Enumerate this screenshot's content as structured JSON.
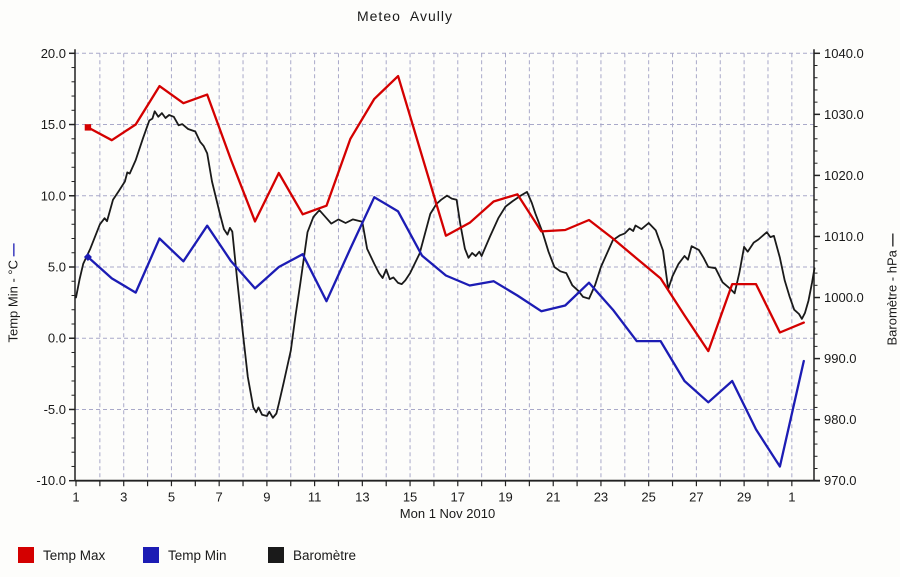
{
  "title": "Meteo  Avully",
  "chart_data": {
    "type": "line",
    "title": "Meteo  Avully",
    "x_axis_label": "Mon 1 Nov 2010",
    "x_range_days": [
      1,
      32
    ],
    "x_tick_labels": [
      "1",
      "3",
      "5",
      "7",
      "9",
      "11",
      "13",
      "15",
      "17",
      "19",
      "21",
      "23",
      "25",
      "27",
      "29",
      "1"
    ],
    "grid": "daily vertical + 5-unit horizontal, dashed",
    "grid_color": "#a9a9c9",
    "legend_position": "bottom-left",
    "y_left": {
      "title": "Temp Min - °C",
      "line_symbol": "—",
      "symbol_color": "#1c1cb4",
      "min": -10.0,
      "max": 20.0,
      "major_step": 5.0,
      "minor_step": 1.0,
      "tick_labels": [
        "20.0",
        "15.0",
        "10.0",
        "5.0",
        "0.0",
        "-5.0",
        "-10.0"
      ]
    },
    "y_right": {
      "title": "Baromètre - hPa",
      "line_symbol": "—",
      "symbol_color": "#1a1a1a",
      "min": 970.0,
      "max": 1040.0,
      "major_step": 10.0,
      "minor_step": 2.0,
      "tick_labels": [
        "1040.0",
        "1030.0",
        "1020.0",
        "1010.0",
        "1000.0",
        "990.0",
        "980.0",
        "970.0"
      ]
    },
    "series": [
      {
        "name": "Temp Max",
        "axis": "left",
        "unit": "°C",
        "color": "#d40000",
        "marker_first_point": "square",
        "days": [
          1,
          2,
          3,
          4,
          5,
          6,
          7,
          8,
          9,
          10,
          11,
          12,
          13,
          14,
          15,
          16,
          17,
          18,
          19,
          20,
          21,
          22,
          23,
          24,
          25,
          26,
          27,
          28,
          29,
          30,
          31
        ],
        "values": [
          14.8,
          13.9,
          15.0,
          17.7,
          16.5,
          17.1,
          12.5,
          8.2,
          11.6,
          8.7,
          9.3,
          14.0,
          16.8,
          18.4,
          12.8,
          7.2,
          8.1,
          9.6,
          10.1,
          7.5,
          7.6,
          8.3,
          7.0,
          5.6,
          4.2,
          1.6,
          -0.9,
          3.8,
          3.8,
          0.4,
          1.1
        ]
      },
      {
        "name": "Temp Min",
        "axis": "left",
        "unit": "°C",
        "color": "#1c1cb4",
        "marker_first_point": "diamond",
        "days": [
          1,
          2,
          3,
          4,
          5,
          6,
          7,
          8,
          9,
          10,
          11,
          12,
          13,
          14,
          15,
          16,
          17,
          18,
          19,
          20,
          21,
          22,
          23,
          24,
          25,
          26,
          27,
          28,
          29,
          30,
          31
        ],
        "values": [
          5.7,
          4.2,
          3.2,
          7.0,
          5.4,
          7.9,
          5.4,
          3.5,
          5.0,
          5.9,
          2.6,
          6.3,
          9.9,
          8.9,
          5.8,
          4.4,
          3.7,
          4.0,
          3.0,
          1.9,
          2.3,
          3.9,
          2.0,
          -0.2,
          -0.2,
          -3.0,
          -4.5,
          -3.0,
          -6.4,
          -9.0,
          -1.6
        ]
      },
      {
        "name": "Baromètre",
        "axis": "right",
        "unit": "hPa",
        "color": "#1a1a1a",
        "points": [
          [
            1.0,
            1000
          ],
          [
            1.15,
            1003
          ],
          [
            1.3,
            1005.5
          ],
          [
            1.6,
            1008
          ],
          [
            2.0,
            1012
          ],
          [
            2.2,
            1013
          ],
          [
            2.3,
            1012.5
          ],
          [
            2.55,
            1016
          ],
          [
            2.8,
            1017.5
          ],
          [
            3.05,
            1019
          ],
          [
            3.15,
            1020.5
          ],
          [
            3.25,
            1020.3
          ],
          [
            3.5,
            1022.5
          ],
          [
            3.8,
            1026
          ],
          [
            4.07,
            1029
          ],
          [
            4.2,
            1029.3
          ],
          [
            4.3,
            1030.5
          ],
          [
            4.45,
            1029.6
          ],
          [
            4.6,
            1030.2
          ],
          [
            4.75,
            1029.4
          ],
          [
            4.9,
            1029.9
          ],
          [
            5.1,
            1029.6
          ],
          [
            5.3,
            1028.2
          ],
          [
            5.45,
            1028.4
          ],
          [
            5.7,
            1027.6
          ],
          [
            6.0,
            1027.2
          ],
          [
            6.2,
            1025.5
          ],
          [
            6.35,
            1024.8
          ],
          [
            6.5,
            1023.6
          ],
          [
            6.7,
            1019
          ],
          [
            7.03,
            1013.7
          ],
          [
            7.2,
            1011.2
          ],
          [
            7.35,
            1010.3
          ],
          [
            7.45,
            1011.4
          ],
          [
            7.55,
            1010.8
          ],
          [
            7.75,
            1003
          ],
          [
            8.0,
            994
          ],
          [
            8.2,
            987
          ],
          [
            8.43,
            982
          ],
          [
            8.55,
            981.2
          ],
          [
            8.65,
            982
          ],
          [
            8.8,
            980.8
          ],
          [
            9.0,
            980.6
          ],
          [
            9.1,
            981.3
          ],
          [
            9.25,
            980.3
          ],
          [
            9.4,
            981
          ],
          [
            9.5,
            982.6
          ],
          [
            9.7,
            986
          ],
          [
            10.0,
            991.3
          ],
          [
            10.2,
            997
          ],
          [
            10.4,
            1002.3
          ],
          [
            10.7,
            1010.7
          ],
          [
            10.95,
            1013.2
          ],
          [
            11.2,
            1014.3
          ],
          [
            11.5,
            1013
          ],
          [
            11.7,
            1012.1
          ],
          [
            12.0,
            1012.8
          ],
          [
            12.3,
            1012.2
          ],
          [
            12.6,
            1012.8
          ],
          [
            13.0,
            1012.4
          ],
          [
            13.2,
            1008
          ],
          [
            13.5,
            1005.5
          ],
          [
            13.7,
            1004
          ],
          [
            13.85,
            1003.2
          ],
          [
            14.0,
            1004.6
          ],
          [
            14.15,
            1003
          ],
          [
            14.3,
            1003.3
          ],
          [
            14.5,
            1002.4
          ],
          [
            14.65,
            1002.2
          ],
          [
            14.8,
            1002.8
          ],
          [
            15.0,
            1004
          ],
          [
            15.4,
            1007.2
          ],
          [
            15.85,
            1013.7
          ],
          [
            16.1,
            1015.3
          ],
          [
            16.3,
            1016
          ],
          [
            16.55,
            1016.7
          ],
          [
            16.75,
            1016.2
          ],
          [
            16.95,
            1016
          ],
          [
            17.1,
            1012.1
          ],
          [
            17.3,
            1008
          ],
          [
            17.45,
            1006.5
          ],
          [
            17.6,
            1007.3
          ],
          [
            17.75,
            1006.8
          ],
          [
            17.9,
            1007.5
          ],
          [
            18.0,
            1006.8
          ],
          [
            18.35,
            1010
          ],
          [
            18.7,
            1013
          ],
          [
            19.0,
            1014.9
          ],
          [
            19.3,
            1015.8
          ],
          [
            19.6,
            1016.6
          ],
          [
            19.9,
            1017.3
          ],
          [
            20.1,
            1015.5
          ],
          [
            20.25,
            1013.8
          ],
          [
            20.55,
            1010.7
          ],
          [
            20.8,
            1007.5
          ],
          [
            21.05,
            1005
          ],
          [
            21.3,
            1004.3
          ],
          [
            21.55,
            1004
          ],
          [
            21.8,
            1002
          ],
          [
            22.05,
            1001.1
          ],
          [
            22.25,
            1000.1
          ],
          [
            22.5,
            999.8
          ],
          [
            22.75,
            1002
          ],
          [
            23.0,
            1005
          ],
          [
            23.5,
            1009.4
          ],
          [
            23.8,
            1010.2
          ],
          [
            24.0,
            1010.5
          ],
          [
            24.2,
            1011.3
          ],
          [
            24.35,
            1010.9
          ],
          [
            24.45,
            1011.8
          ],
          [
            24.7,
            1011.2
          ],
          [
            25.0,
            1012.2
          ],
          [
            25.3,
            1011
          ],
          [
            25.6,
            1007.7
          ],
          [
            25.82,
            1001.4
          ],
          [
            26.0,
            1003.5
          ],
          [
            26.25,
            1005.5
          ],
          [
            26.5,
            1006.8
          ],
          [
            26.65,
            1006.2
          ],
          [
            26.8,
            1008.4
          ],
          [
            27.1,
            1007.8
          ],
          [
            27.3,
            1006.5
          ],
          [
            27.5,
            1005
          ],
          [
            27.8,
            1004.8
          ],
          [
            28.1,
            1002.5
          ],
          [
            28.4,
            1001.5
          ],
          [
            28.6,
            1000.7
          ],
          [
            28.8,
            1004
          ],
          [
            29.0,
            1008.3
          ],
          [
            29.15,
            1007.5
          ],
          [
            29.4,
            1009
          ],
          [
            29.6,
            1009.5
          ],
          [
            29.8,
            1010.2
          ],
          [
            29.95,
            1010.7
          ],
          [
            30.1,
            1009.9
          ],
          [
            30.25,
            1010.1
          ],
          [
            30.5,
            1006.5
          ],
          [
            30.7,
            1002.8
          ],
          [
            30.9,
            1000.2
          ],
          [
            31.1,
            998
          ],
          [
            31.3,
            997.3
          ],
          [
            31.42,
            996.5
          ],
          [
            31.55,
            997.5
          ],
          [
            31.7,
            999.5
          ],
          [
            31.85,
            1002.5
          ],
          [
            31.95,
            1004.8
          ]
        ]
      }
    ]
  }
}
